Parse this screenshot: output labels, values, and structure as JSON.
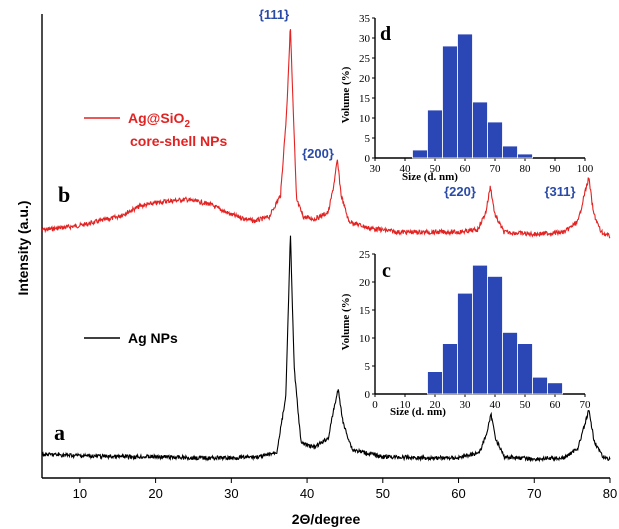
{
  "chart_data": [
    {
      "type": "line",
      "xlabel": "2Θ/degree",
      "ylabel": "Intensity (a.u.)",
      "xlim": [
        5,
        80
      ],
      "xticks": [
        10,
        20,
        30,
        40,
        50,
        60,
        70,
        80
      ],
      "series": [
        {
          "name": "Ag@SiO2 core-shell NPs",
          "legend_main": "Ag@SiO",
          "legend_sub": "2",
          "legend_line2": "core-shell NPs",
          "curve_label": "b",
          "color": "#e32222",
          "x": [
            5,
            10,
            15,
            18,
            21,
            24,
            27,
            30,
            33,
            35,
            36.5,
            37.3,
            37.8,
            38.1,
            38.6,
            39.5,
            41,
            42.8,
            43.5,
            44.0,
            44.5,
            45.5,
            48,
            52,
            56,
            60,
            62.5,
            63.6,
            64.2,
            64.8,
            66,
            70,
            74,
            75.8,
            76.6,
            77.2,
            77.8,
            78.8,
            80
          ],
          "y": [
            6,
            8,
            12,
            17,
            19,
            20,
            18,
            13,
            10,
            12,
            22,
            60,
            100,
            68,
            20,
            12,
            11,
            14,
            26,
            38,
            22,
            10,
            7,
            5,
            5,
            5,
            6,
            14,
            26,
            13,
            5,
            4,
            5,
            10,
            22,
            30,
            14,
            5,
            3
          ]
        },
        {
          "name": "Ag NPs",
          "curve_label": "a",
          "color": "#000000",
          "x": [
            5,
            10,
            15,
            20,
            25,
            30,
            34,
            36,
            37.2,
            37.8,
            38.3,
            39.2,
            41,
            42.8,
            43.5,
            44.1,
            44.8,
            46,
            50,
            55,
            60,
            62.8,
            63.7,
            64.3,
            64.9,
            66,
            70,
            74,
            75.8,
            76.6,
            77.2,
            77.9,
            79,
            80
          ],
          "y": [
            5,
            4.5,
            4,
            4,
            3.5,
            3.5,
            4,
            6,
            30,
            100,
            42,
            10,
            8,
            12,
            24,
            33,
            18,
            7,
            4,
            3.5,
            3.5,
            6,
            14,
            22,
            12,
            4,
            3,
            3.5,
            8,
            17,
            24,
            11,
            4,
            3
          ]
        }
      ],
      "annotations": [
        "{111}",
        "{200}",
        "{220}",
        "{311}"
      ]
    },
    {
      "type": "bar",
      "panel_label": "d",
      "xlabel": "Size (d. nm)",
      "ylabel": "Volume (%)",
      "xlim": [
        30,
        100
      ],
      "ylim": [
        0,
        35
      ],
      "xticks": [
        30,
        40,
        50,
        60,
        70,
        80,
        90,
        100
      ],
      "yticks": [
        0,
        5,
        10,
        15,
        20,
        25,
        30,
        35
      ],
      "x": [
        45,
        50,
        55,
        60,
        65,
        70,
        75,
        80,
        85
      ],
      "values": [
        2,
        12,
        28,
        31,
        14,
        9,
        3,
        1,
        0
      ],
      "bar_color": "#2b46b5"
    },
    {
      "type": "bar",
      "panel_label": "c",
      "xlabel": "Size (d. nm)",
      "ylabel": "Volume (%)",
      "xlim": [
        0,
        70
      ],
      "ylim": [
        0,
        25
      ],
      "xticks": [
        0,
        10,
        20,
        30,
        40,
        50,
        60,
        70
      ],
      "yticks": [
        0,
        5,
        10,
        15,
        20,
        25
      ],
      "x": [
        20,
        25,
        30,
        35,
        40,
        45,
        50,
        55,
        60
      ],
      "values": [
        4,
        9,
        18,
        23,
        21,
        11,
        9,
        3,
        2
      ],
      "bar_color": "#2b46b5"
    }
  ]
}
